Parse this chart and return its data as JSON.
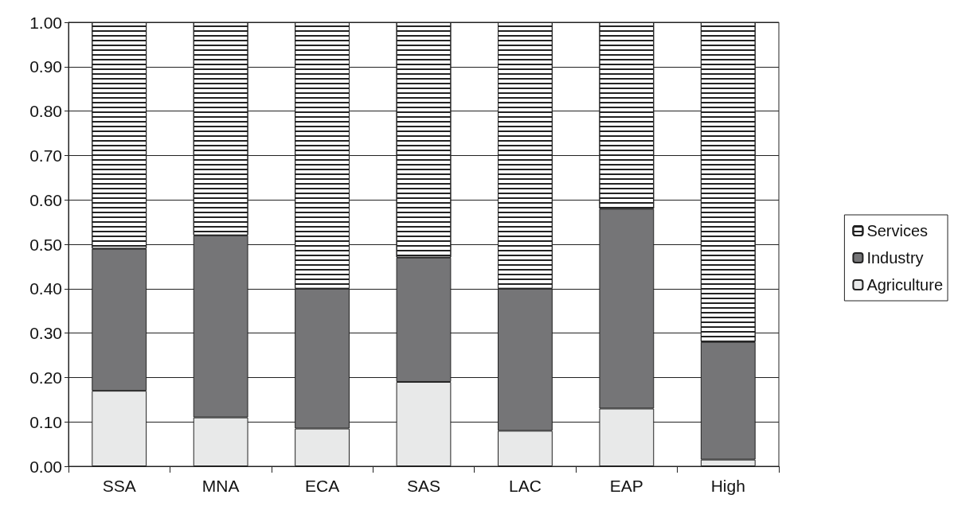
{
  "chart_data": {
    "type": "bar",
    "stacked": true,
    "categories": [
      "SSA",
      "MNA",
      "ECA",
      "SAS",
      "LAC",
      "EAP",
      "High"
    ],
    "series": [
      {
        "name": "Agriculture",
        "color": "#e8e9e9",
        "values": [
          0.17,
          0.11,
          0.085,
          0.19,
          0.08,
          0.13,
          0.015
        ]
      },
      {
        "name": "Industry",
        "color": "#757577",
        "values": [
          0.32,
          0.41,
          0.315,
          0.28,
          0.32,
          0.45,
          0.265
        ]
      },
      {
        "name": "Services",
        "color": "#ffffff",
        "values": [
          0.51,
          0.48,
          0.6,
          0.53,
          0.6,
          0.42,
          0.72
        ]
      }
    ],
    "ylim": [
      0,
      1
    ],
    "yticks": [
      {
        "value": 0,
        "label": "0.00"
      },
      {
        "value": 0.1,
        "label": "0.10"
      },
      {
        "value": 0.2,
        "label": "0.20"
      },
      {
        "value": 0.3,
        "label": "0.30"
      },
      {
        "value": 0.4,
        "label": "0.40"
      },
      {
        "value": 0.5,
        "label": "0.50"
      },
      {
        "value": 0.6,
        "label": "0.60"
      },
      {
        "value": 0.7,
        "label": "0.70"
      },
      {
        "value": 0.8,
        "label": "0.80"
      },
      {
        "value": 0.9,
        "label": "0.90"
      },
      {
        "value": 1,
        "label": "1.00"
      }
    ],
    "grid": "y",
    "legend": "right"
  }
}
